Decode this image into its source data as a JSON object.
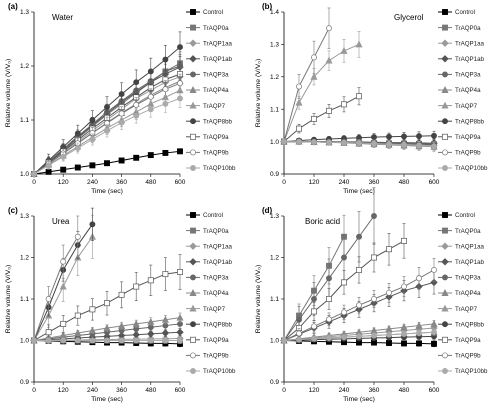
{
  "chart_data": [
    {
      "panel": "(a)",
      "title": "Water",
      "type": "line",
      "xlabel": "Time (sec)",
      "ylabel": "Relative volume (V/V₀)",
      "xlim": [
        0,
        600
      ],
      "ylim": [
        1.0,
        1.3
      ],
      "xticks": [
        0,
        120,
        240,
        360,
        480,
        600
      ],
      "yticks": [
        1.0,
        1.1,
        1.2,
        1.3
      ],
      "x": [
        0,
        60,
        120,
        180,
        240,
        300,
        360,
        420,
        480,
        540,
        600
      ],
      "legend_position": "right",
      "series": [
        {
          "name": "Control",
          "color": "#000000",
          "marker": "square-filled",
          "values": [
            1.0,
            1.004,
            1.008,
            1.012,
            1.016,
            1.02,
            1.025,
            1.03,
            1.035,
            1.039,
            1.042
          ],
          "err": null
        },
        {
          "name": "TrAQP0a",
          "color": "#777777",
          "marker": "square-filled",
          "values": [
            1.0,
            1.022,
            1.044,
            1.066,
            1.088,
            1.11,
            1.13,
            1.15,
            1.17,
            1.19,
            1.205
          ],
          "err": 0.015
        },
        {
          "name": "TrAQP1aa",
          "color": "#9a9a9a",
          "marker": "diamond-filled",
          "values": [
            1.0,
            1.02,
            1.04,
            1.06,
            1.08,
            1.1,
            1.12,
            1.14,
            1.155,
            1.17,
            1.18
          ],
          "err": 0.012
        },
        {
          "name": "TrAQP1ab",
          "color": "#555555",
          "marker": "diamond-filled",
          "values": [
            1.0,
            1.022,
            1.045,
            1.068,
            1.09,
            1.112,
            1.133,
            1.152,
            1.17,
            1.185,
            1.198
          ],
          "err": 0.014
        },
        {
          "name": "TrAQP3a",
          "color": "#666666",
          "marker": "circle-filled",
          "values": [
            1.0,
            1.023,
            1.046,
            1.07,
            1.092,
            1.115,
            1.135,
            1.155,
            1.172,
            1.19,
            1.2
          ],
          "err": 0.015
        },
        {
          "name": "TrAQP4a",
          "color": "#888888",
          "marker": "triangle-filled",
          "values": [
            1.0,
            1.019,
            1.038,
            1.057,
            1.076,
            1.095,
            1.113,
            1.13,
            1.146,
            1.16,
            1.172
          ],
          "err": 0.012
        },
        {
          "name": "TrAQP7",
          "color": "#999999",
          "marker": "triangle-filled",
          "values": [
            1.0,
            1.017,
            1.034,
            1.051,
            1.068,
            1.085,
            1.1,
            1.115,
            1.13,
            1.142,
            1.155
          ],
          "err": 0.012
        },
        {
          "name": "TrAQP8bb",
          "color": "#444444",
          "marker": "circle-filled",
          "values": [
            1.0,
            1.025,
            1.05,
            1.075,
            1.1,
            1.124,
            1.148,
            1.17,
            1.19,
            1.212,
            1.235
          ],
          "err": 0.02
        },
        {
          "name": "TrAQP9a",
          "color": "#555555",
          "marker": "square-open",
          "values": [
            1.0,
            1.021,
            1.042,
            1.063,
            1.084,
            1.104,
            1.124,
            1.142,
            1.16,
            1.175,
            1.185
          ],
          "err": 0.012
        },
        {
          "name": "TrAQP9b",
          "color": "#777777",
          "marker": "circle-open",
          "values": [
            1.0,
            1.019,
            1.038,
            1.057,
            1.076,
            1.094,
            1.112,
            1.128,
            1.143,
            1.157,
            1.168
          ],
          "err": 0.012
        },
        {
          "name": "TrAQP10bb",
          "color": "#aaaaaa",
          "marker": "circle-filled",
          "values": [
            1.0,
            1.016,
            1.032,
            1.048,
            1.064,
            1.08,
            1.095,
            1.108,
            1.12,
            1.13,
            1.14
          ],
          "err": 0.012
        }
      ]
    },
    {
      "panel": "(b)",
      "title": "Glycerol",
      "type": "line",
      "xlabel": "Time (sec)",
      "ylabel": "Relative volume (V/V₀)",
      "xlim": [
        0,
        600
      ],
      "ylim": [
        0.9,
        1.4
      ],
      "xticks": [
        0,
        120,
        240,
        360,
        480,
        600
      ],
      "yticks": [
        0.9,
        1.0,
        1.1,
        1.2,
        1.3,
        1.4
      ],
      "x": [
        0,
        60,
        120,
        180,
        240,
        300,
        360,
        420,
        480,
        540,
        600
      ],
      "legend_position": "right",
      "series": [
        {
          "name": "Control",
          "color": "#000000",
          "marker": "square-filled",
          "values": [
            1.0,
            1.0,
            0.999,
            0.998,
            0.997,
            0.996,
            0.995,
            0.994,
            0.993,
            0.992,
            0.99
          ],
          "err": 0.01
        },
        {
          "name": "TrAQP0a",
          "color": "#777777",
          "marker": "square-filled",
          "values": [
            1.0,
            1.0,
            1.0,
            0.999,
            0.998,
            0.997,
            0.996,
            0.995,
            0.994,
            0.993,
            0.992
          ],
          "err": 0.01
        },
        {
          "name": "TrAQP1aa",
          "color": "#9a9a9a",
          "marker": "diamond-filled",
          "values": [
            1.0,
            1.0,
            0.999,
            0.998,
            0.997,
            0.996,
            0.995,
            0.993,
            0.992,
            0.99,
            0.988
          ],
          "err": 0.01
        },
        {
          "name": "TrAQP1ab",
          "color": "#555555",
          "marker": "diamond-filled",
          "values": [
            1.0,
            1.0,
            1.0,
            1.0,
            0.999,
            0.999,
            0.998,
            0.997,
            0.997,
            0.996,
            0.995
          ],
          "err": 0.01
        },
        {
          "name": "TrAQP3a",
          "color": "#666666",
          "marker": "circle-filled",
          "values": [
            1.0,
            1.0,
            0.999,
            0.999,
            0.998,
            0.997,
            0.996,
            0.995,
            0.994,
            0.993,
            0.992
          ],
          "err": 0.01
        },
        {
          "name": "TrAQP4a",
          "color": "#888888",
          "marker": "triangle-filled",
          "values": [
            1.0,
            1.0,
            0.999,
            0.998,
            0.996,
            0.994,
            0.992,
            0.99,
            0.988,
            0.986,
            0.984
          ],
          "err": 0.01
        },
        {
          "name": "TrAQP7",
          "color": "#999999",
          "marker": "triangle-filled",
          "values": [
            1.0,
            1.12,
            1.2,
            1.25,
            1.28,
            1.3,
            null,
            null,
            null,
            null,
            null
          ],
          "err": 0.03
        },
        {
          "name": "TrAQP8bb",
          "color": "#444444",
          "marker": "circle-filled",
          "values": [
            1.0,
            1.003,
            1.006,
            1.008,
            1.01,
            1.012,
            1.014,
            1.015,
            1.016,
            1.017,
            1.018
          ],
          "err": 0.01
        },
        {
          "name": "TrAQP9a",
          "color": "#555555",
          "marker": "square-open",
          "values": [
            1.0,
            1.04,
            1.07,
            1.095,
            1.115,
            1.14,
            null,
            null,
            null,
            null,
            null
          ],
          "err": 0.02
        },
        {
          "name": "TrAQP9b",
          "color": "#777777",
          "marker": "circle-open",
          "values": [
            1.0,
            1.17,
            1.26,
            1.35,
            null,
            null,
            null,
            null,
            null,
            null,
            null
          ],
          "err": 0.05
        },
        {
          "name": "TrAQP10bb",
          "color": "#aaaaaa",
          "marker": "circle-filled",
          "values": [
            1.0,
            1.0,
            0.999,
            0.998,
            0.997,
            0.996,
            0.994,
            0.992,
            0.99,
            0.988,
            0.985
          ],
          "err": 0.01
        }
      ]
    },
    {
      "panel": "(c)",
      "title": "Urea",
      "type": "line",
      "xlabel": "Time (sec)",
      "ylabel": "Relative volume (V/V₀)",
      "xlim": [
        0,
        600
      ],
      "ylim": [
        0.9,
        1.3
      ],
      "xticks": [
        0,
        120,
        240,
        360,
        480,
        600
      ],
      "yticks": [
        0.9,
        1.0,
        1.1,
        1.2,
        1.3
      ],
      "x": [
        0,
        60,
        120,
        180,
        240,
        300,
        360,
        420,
        480,
        540,
        600
      ],
      "legend_position": "right",
      "series": [
        {
          "name": "Control",
          "color": "#000000",
          "marker": "square-filled",
          "values": [
            1.0,
            0.999,
            0.998,
            0.997,
            0.996,
            0.995,
            0.995,
            0.994,
            0.993,
            0.993,
            0.992
          ],
          "err": 0.005
        },
        {
          "name": "TrAQP0a",
          "color": "#777777",
          "marker": "square-filled",
          "values": [
            1.0,
            1.0,
            1.0,
            1.0,
            1.0,
            1.0,
            1.0,
            1.0,
            1.0,
            1.0,
            1.0
          ],
          "err": 0.005
        },
        {
          "name": "TrAQP1aa",
          "color": "#9a9a9a",
          "marker": "diamond-filled",
          "values": [
            1.0,
            1.0,
            1.001,
            1.001,
            1.002,
            1.002,
            1.003,
            1.003,
            1.004,
            1.004,
            1.005
          ],
          "err": 0.005
        },
        {
          "name": "TrAQP1ab",
          "color": "#555555",
          "marker": "diamond-filled",
          "values": [
            1.0,
            1.002,
            1.004,
            1.006,
            1.008,
            1.01,
            1.012,
            1.014,
            1.016,
            1.018,
            1.02
          ],
          "err": 0.006
        },
        {
          "name": "TrAQP3a",
          "color": "#666666",
          "marker": "circle-filled",
          "values": [
            1.0,
            1.004,
            1.008,
            1.012,
            1.016,
            1.02,
            1.024,
            1.028,
            1.032,
            1.036,
            1.04
          ],
          "err": 0.008
        },
        {
          "name": "TrAQP4a",
          "color": "#888888",
          "marker": "triangle-filled",
          "values": [
            1.0,
            1.006,
            1.012,
            1.018,
            1.024,
            1.03,
            1.035,
            1.04,
            1.045,
            1.05,
            1.055
          ],
          "err": 0.008
        },
        {
          "name": "TrAQP7",
          "color": "#999999",
          "marker": "triangle-filled",
          "values": [
            1.0,
            1.06,
            1.13,
            1.2,
            1.25,
            null,
            null,
            null,
            null,
            null,
            null
          ],
          "err": 0.04
        },
        {
          "name": "TrAQP8bb",
          "color": "#444444",
          "marker": "circle-filled",
          "values": [
            1.0,
            1.08,
            1.17,
            1.23,
            1.28,
            null,
            null,
            null,
            null,
            null,
            null
          ],
          "err": 0.03
        },
        {
          "name": "TrAQP9a",
          "color": "#555555",
          "marker": "square-open",
          "values": [
            1.0,
            1.02,
            1.04,
            1.06,
            1.075,
            1.09,
            1.11,
            1.13,
            1.145,
            1.16,
            1.165
          ],
          "err": 0.03
        },
        {
          "name": "TrAQP9b",
          "color": "#777777",
          "marker": "circle-open",
          "values": [
            1.0,
            1.1,
            1.19,
            1.25,
            null,
            null,
            null,
            null,
            null,
            null,
            null
          ],
          "err": 0.04
        },
        {
          "name": "TrAQP10bb",
          "color": "#aaaaaa",
          "marker": "circle-filled",
          "values": [
            1.0,
            1.0,
            1.0,
            1.0,
            1.0,
            1.0,
            1.0,
            1.0,
            1.0,
            1.0,
            1.0
          ],
          "err": 0.005
        }
      ]
    },
    {
      "panel": "(d)",
      "title": "Boric acid",
      "type": "line",
      "xlabel": "Time (sec)",
      "ylabel": "Relative volume (V/V₀)",
      "xlim": [
        0,
        600
      ],
      "ylim": [
        0.9,
        1.3
      ],
      "xticks": [
        0,
        120,
        240,
        360,
        480,
        600
      ],
      "yticks": [
        0.9,
        1.0,
        1.1,
        1.2,
        1.3
      ],
      "x": [
        0,
        60,
        120,
        180,
        240,
        300,
        360,
        420,
        480,
        540,
        600
      ],
      "legend_position": "right",
      "series": [
        {
          "name": "Control",
          "color": "#000000",
          "marker": "square-filled",
          "values": [
            1.0,
            0.999,
            0.998,
            0.997,
            0.996,
            0.995,
            0.995,
            0.994,
            0.993,
            0.993,
            0.992
          ],
          "err": 0.005
        },
        {
          "name": "TrAQP0a",
          "color": "#777777",
          "marker": "square-filled",
          "values": [
            1.0,
            1.06,
            1.12,
            1.18,
            1.25,
            null,
            null,
            null,
            null,
            null,
            null
          ],
          "err": 0.04
        },
        {
          "name": "TrAQP1aa",
          "color": "#9a9a9a",
          "marker": "diamond-filled",
          "values": [
            1.0,
            1.003,
            1.006,
            1.009,
            1.012,
            1.015,
            1.018,
            1.021,
            1.024,
            1.027,
            1.03
          ],
          "err": 0.006
        },
        {
          "name": "TrAQP1ab",
          "color": "#555555",
          "marker": "diamond-filled",
          "values": [
            1.0,
            1.015,
            1.03,
            1.045,
            1.06,
            1.075,
            1.09,
            1.105,
            1.12,
            1.13,
            1.14
          ],
          "err": 0.02
        },
        {
          "name": "TrAQP3a",
          "color": "#666666",
          "marker": "circle-filled",
          "values": [
            1.0,
            1.05,
            1.1,
            1.15,
            1.2,
            1.25,
            1.3,
            null,
            null,
            null,
            null
          ],
          "err": 0.05
        },
        {
          "name": "TrAQP4a",
          "color": "#888888",
          "marker": "triangle-filled",
          "values": [
            1.0,
            1.004,
            1.008,
            1.012,
            1.016,
            1.02,
            1.024,
            1.028,
            1.032,
            1.036,
            1.04
          ],
          "err": 0.006
        },
        {
          "name": "TrAQP7",
          "color": "#999999",
          "marker": "triangle-filled",
          "values": [
            1.0,
            1.002,
            1.004,
            1.006,
            1.008,
            1.01,
            1.012,
            1.014,
            1.016,
            1.018,
            1.02
          ],
          "err": 0.005
        },
        {
          "name": "TrAQP8bb",
          "color": "#444444",
          "marker": "circle-filled",
          "values": [
            1.0,
            1.001,
            1.002,
            1.003,
            1.004,
            1.005,
            1.006,
            1.007,
            1.008,
            1.009,
            1.01
          ],
          "err": 0.005
        },
        {
          "name": "TrAQP9a",
          "color": "#555555",
          "marker": "square-open",
          "values": [
            1.0,
            1.03,
            1.07,
            1.1,
            1.14,
            1.17,
            1.2,
            1.22,
            1.24,
            null,
            null
          ],
          "err": 0.03
        },
        {
          "name": "TrAQP9b",
          "color": "#777777",
          "marker": "circle-open",
          "values": [
            1.0,
            1.017,
            1.034,
            1.051,
            1.068,
            1.085,
            1.1,
            1.115,
            1.13,
            1.15,
            1.17
          ],
          "err": 0.02
        },
        {
          "name": "TrAQP10bb",
          "color": "#aaaaaa",
          "marker": "circle-filled",
          "values": [
            1.0,
            1.002,
            1.004,
            1.006,
            1.008,
            1.01,
            1.012,
            1.014,
            1.016,
            1.018,
            1.02
          ],
          "err": 0.005
        }
      ]
    }
  ]
}
